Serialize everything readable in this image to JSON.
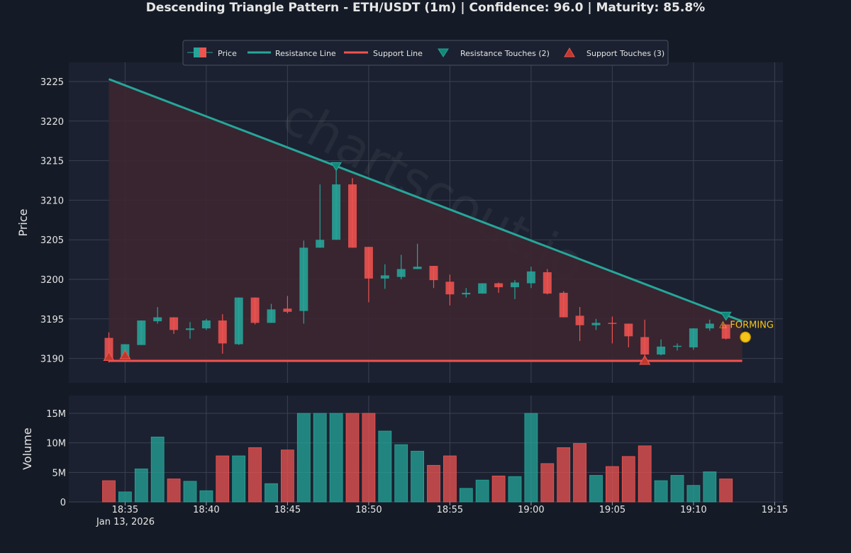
{
  "title": "Descending Triangle Pattern - ETH/USDT (1m) | Confidence: 96.0 | Maturity: 85.8%",
  "watermark": "chartscout.io",
  "status_label": "⚠ FORMING",
  "legend": {
    "price": "Price",
    "resistance_line": "Resistance Line",
    "support_line": "Support Line",
    "resistance_touches": "Resistance Touches (2)",
    "support_touches": "Support Touches (3)"
  },
  "colors": {
    "background": "#151b26",
    "panel": "#1b2130",
    "bull": "#26a69a",
    "bear": "#ef5350",
    "resistance": "#26a69a",
    "support": "#ef5350",
    "forming": "#f5c518",
    "fill": "#3d2630"
  },
  "chart_data": [
    {
      "type": "candlestick",
      "ylabel": "Price",
      "ylim": [
        3187,
        3227
      ],
      "yticks": [
        3190,
        3195,
        3200,
        3205,
        3210,
        3215,
        3220,
        3225
      ],
      "xlim": [
        18.2,
        19.2
      ],
      "date_label": "Jan 13, 2026",
      "xticks": [
        "18:35",
        "18:40",
        "18:45",
        "18:50",
        "18:55",
        "19:00",
        "19:05",
        "19:10",
        "19:15"
      ],
      "xtick_minutes": [
        1,
        6,
        11,
        16,
        21,
        26,
        31,
        36,
        41
      ],
      "x_start": "18:34",
      "candles": [
        {
          "o": 3192.6,
          "h": 3193.3,
          "l": 3189.5,
          "c": 3190.0
        },
        {
          "o": 3190.2,
          "h": 3191.8,
          "l": 3190.0,
          "c": 3191.8
        },
        {
          "o": 3191.7,
          "h": 3194.8,
          "l": 3191.7,
          "c": 3194.8
        },
        {
          "o": 3194.7,
          "h": 3196.5,
          "l": 3194.4,
          "c": 3195.2
        },
        {
          "o": 3195.2,
          "h": 3195.2,
          "l": 3193.1,
          "c": 3193.6
        },
        {
          "o": 3193.6,
          "h": 3194.6,
          "l": 3192.5,
          "c": 3193.8
        },
        {
          "o": 3193.8,
          "h": 3195.0,
          "l": 3193.6,
          "c": 3194.8
        },
        {
          "o": 3194.8,
          "h": 3195.6,
          "l": 3190.6,
          "c": 3191.9
        },
        {
          "o": 3191.8,
          "h": 3197.7,
          "l": 3191.7,
          "c": 3197.7
        },
        {
          "o": 3197.7,
          "h": 3197.7,
          "l": 3194.3,
          "c": 3194.5
        },
        {
          "o": 3194.5,
          "h": 3196.9,
          "l": 3194.5,
          "c": 3196.2
        },
        {
          "o": 3196.3,
          "h": 3197.9,
          "l": 3195.7,
          "c": 3195.9
        },
        {
          "o": 3196.0,
          "h": 3204.9,
          "l": 3194.4,
          "c": 3204.0
        },
        {
          "o": 3204.0,
          "h": 3212.0,
          "l": 3204.0,
          "c": 3205.0
        },
        {
          "o": 3205.0,
          "h": 3214.3,
          "l": 3205.0,
          "c": 3212.0
        },
        {
          "o": 3212.0,
          "h": 3212.8,
          "l": 3204.0,
          "c": 3204.0
        },
        {
          "o": 3204.1,
          "h": 3204.1,
          "l": 3197.1,
          "c": 3200.1
        },
        {
          "o": 3200.1,
          "h": 3201.9,
          "l": 3198.8,
          "c": 3200.5
        },
        {
          "o": 3200.3,
          "h": 3203.1,
          "l": 3200.0,
          "c": 3201.3
        },
        {
          "o": 3201.3,
          "h": 3204.5,
          "l": 3201.3,
          "c": 3201.6
        },
        {
          "o": 3201.7,
          "h": 3201.7,
          "l": 3198.9,
          "c": 3199.9
        },
        {
          "o": 3199.7,
          "h": 3200.6,
          "l": 3196.7,
          "c": 3198.1
        },
        {
          "o": 3198.1,
          "h": 3198.9,
          "l": 3197.7,
          "c": 3198.3
        },
        {
          "o": 3198.2,
          "h": 3199.5,
          "l": 3198.2,
          "c": 3199.5
        },
        {
          "o": 3199.5,
          "h": 3199.6,
          "l": 3198.3,
          "c": 3199.0
        },
        {
          "o": 3199.0,
          "h": 3199.9,
          "l": 3197.5,
          "c": 3199.6
        },
        {
          "o": 3199.5,
          "h": 3201.6,
          "l": 3198.9,
          "c": 3201.0
        },
        {
          "o": 3200.9,
          "h": 3201.3,
          "l": 3198.1,
          "c": 3198.2
        },
        {
          "o": 3198.3,
          "h": 3198.5,
          "l": 3195.2,
          "c": 3195.2
        },
        {
          "o": 3195.4,
          "h": 3196.5,
          "l": 3192.2,
          "c": 3194.2
        },
        {
          "o": 3194.2,
          "h": 3195.0,
          "l": 3193.6,
          "c": 3194.5
        },
        {
          "o": 3194.5,
          "h": 3195.3,
          "l": 3191.9,
          "c": 3194.4
        },
        {
          "o": 3194.4,
          "h": 3194.4,
          "l": 3191.4,
          "c": 3192.8
        },
        {
          "o": 3192.7,
          "h": 3194.9,
          "l": 3190.3,
          "c": 3190.5
        },
        {
          "o": 3190.5,
          "h": 3192.4,
          "l": 3190.4,
          "c": 3191.5
        },
        {
          "o": 3191.5,
          "h": 3191.9,
          "l": 3191.0,
          "c": 3191.6
        },
        {
          "o": 3191.4,
          "h": 3193.8,
          "l": 3191.1,
          "c": 3193.8
        },
        {
          "o": 3193.8,
          "h": 3194.9,
          "l": 3193.5,
          "c": 3194.4
        },
        {
          "o": 3194.3,
          "h": 3194.3,
          "l": 3192.4,
          "c": 3192.5
        }
      ],
      "resistance_line": {
        "start_minute": 0,
        "start_price": 3225.3,
        "end_minute": 39,
        "end_price": 3194.7
      },
      "support_line": {
        "start_minute": 0,
        "end_minute": 39,
        "price": 3189.7
      },
      "resistance_touches": [
        {
          "minute": 14,
          "price": 3214.3
        },
        {
          "minute": 38,
          "price": 3195.4
        }
      ],
      "support_touches": [
        {
          "minute": 0,
          "price": 3190.2
        },
        {
          "minute": 1,
          "price": 3190.4
        },
        {
          "minute": 33,
          "price": 3189.7
        }
      ],
      "forming_marker": {
        "minute": 39,
        "price": 3192.7
      }
    },
    {
      "type": "bar",
      "ylabel": "Volume",
      "ylim": [
        0,
        18
      ],
      "yticks": [
        0,
        5,
        10,
        15
      ],
      "ytick_labels": [
        "0",
        "5M",
        "10M",
        "15M"
      ],
      "unit": "M",
      "values": [
        3.6,
        1.7,
        5.6,
        11.0,
        3.9,
        3.5,
        1.9,
        7.8,
        7.8,
        9.2,
        3.1,
        8.8,
        15,
        15,
        15,
        15,
        15,
        12.0,
        9.7,
        8.6,
        6.2,
        7.8,
        2.3,
        3.7,
        4.4,
        4.3,
        15,
        6.5,
        9.2,
        9.9,
        4.5,
        6.0,
        7.7,
        9.5,
        3.6,
        4.5,
        2.8,
        5.1,
        3.9
      ]
    }
  ]
}
